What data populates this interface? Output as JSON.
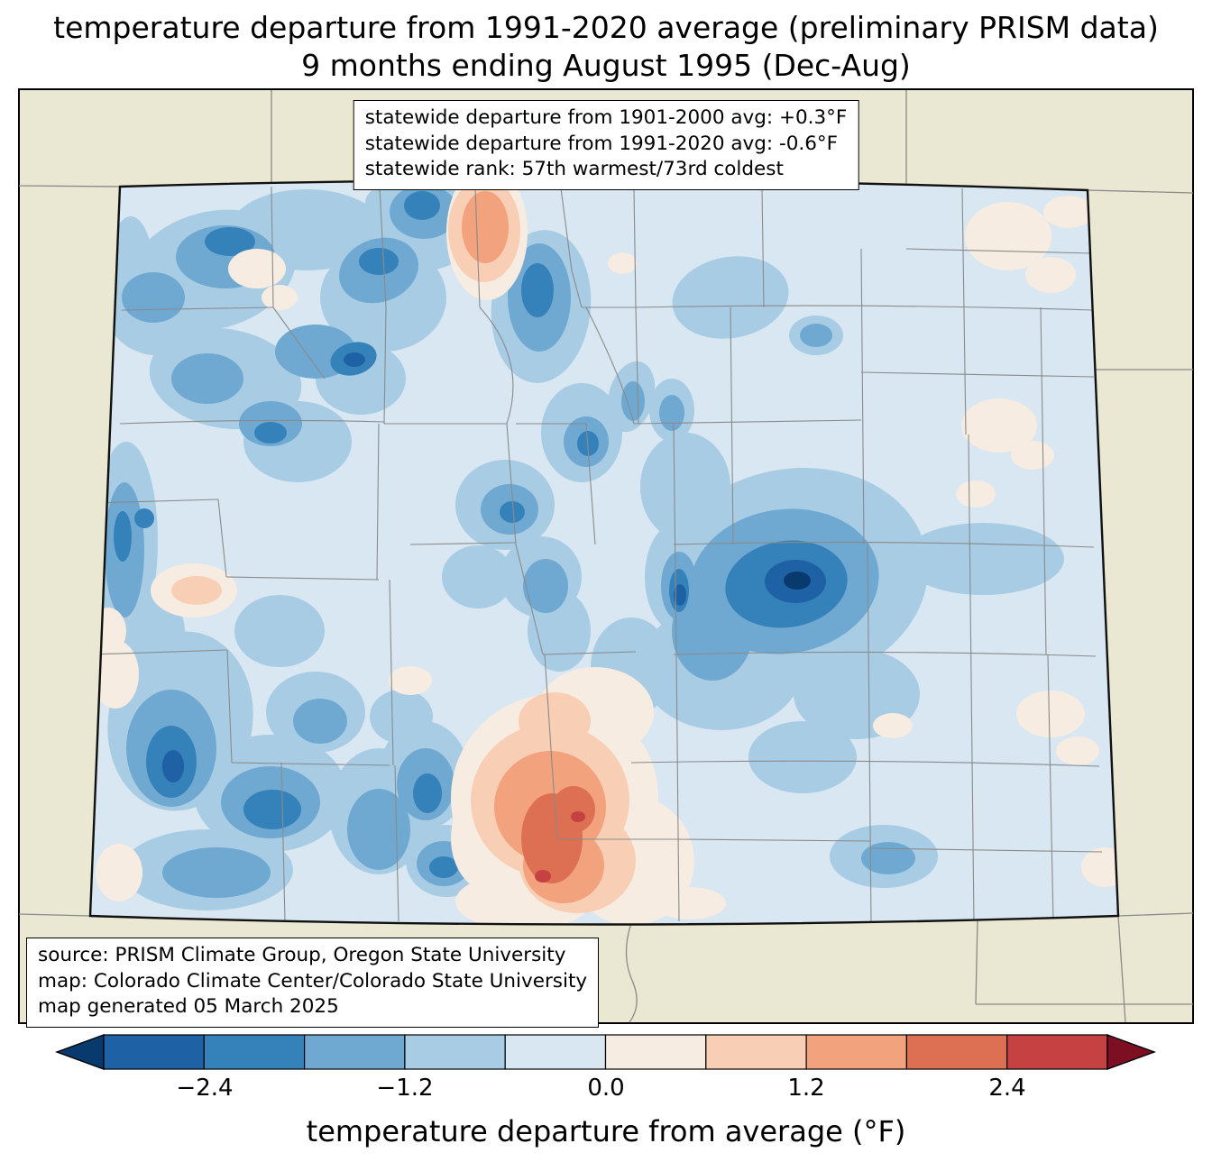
{
  "title": {
    "line1": "temperature departure from 1991-2020 average (preliminary PRISM data)",
    "line2": "9 months ending August 1995 (Dec-Aug)"
  },
  "stats_box": {
    "lines": [
      "statewide departure from 1901-2000 avg: +0.3°F",
      "statewide departure from 1991-2020 avg: -0.6°F",
      "statewide rank: 57th warmest/73rd coldest"
    ]
  },
  "source_box": {
    "lines": [
      "source: PRISM Climate Group, Oregon State University",
      "map: Colorado Climate Center/Colorado State University",
      "map generated 05 March 2025"
    ]
  },
  "colorbar": {
    "label": "temperature departure from average (°F)",
    "tick_labels": [
      "−2.4",
      "−1.2",
      "0.0",
      "1.2",
      "2.4"
    ],
    "levels": [
      -3.0,
      -2.4,
      -1.8,
      -1.2,
      -0.6,
      0.0,
      0.6,
      1.2,
      1.8,
      2.4,
      3.0
    ],
    "under_color": "#083a6e",
    "over_color": "#7d0f22",
    "palette": [
      "#1e61a5",
      "#3582bb",
      "#6fa9d2",
      "#a8cce4",
      "#d8e7f1",
      "#f7ece1",
      "#f8cfb5",
      "#f2a27d",
      "#dd6f52",
      "#c64141"
    ]
  },
  "map": {
    "background": "#eae7d2",
    "county_line": "#8a8a8a",
    "state_line": "#111111"
  }
}
